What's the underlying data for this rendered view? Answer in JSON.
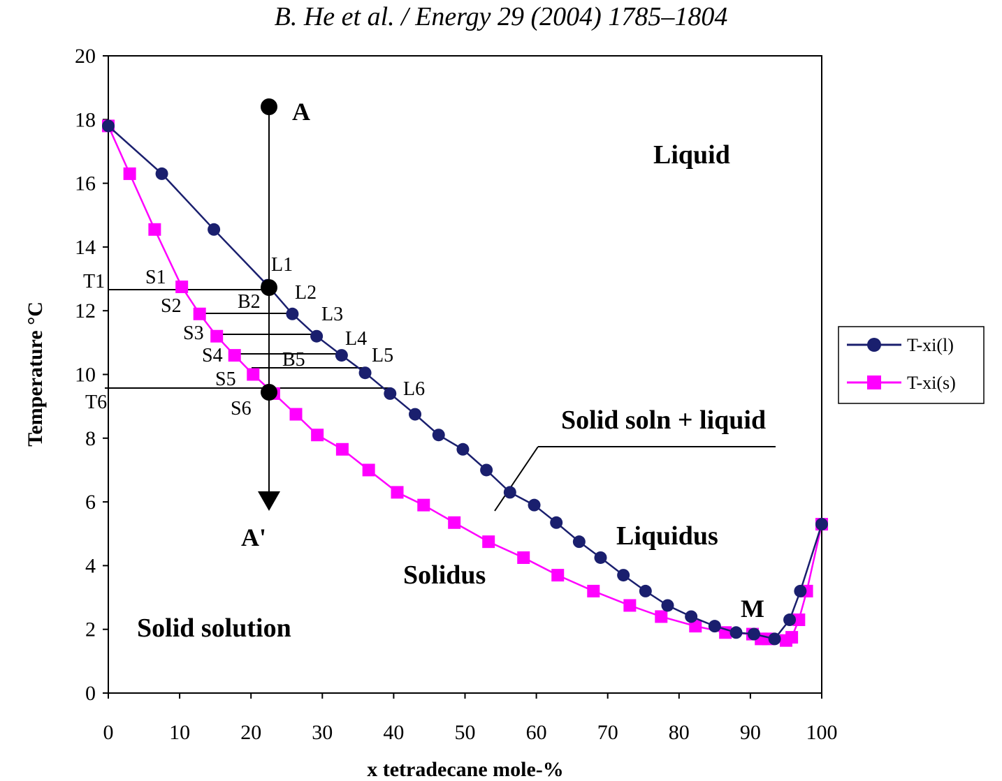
{
  "header": "B. He et al. / Energy 29 (2004) 1785–1804",
  "chart_data": {
    "type": "line",
    "title": "",
    "xlabel": "x tetradecane mole-%",
    "ylabel": "Temperature °C",
    "xlim": [
      0,
      100
    ],
    "ylim": [
      0,
      20
    ],
    "x_ticks": [
      "0",
      "10",
      "20",
      "30",
      "40",
      "50",
      "60",
      "70",
      "80",
      "90",
      "100"
    ],
    "y_ticks": [
      "0",
      "2",
      "4",
      "6",
      "8",
      "10",
      "12",
      "14",
      "16",
      "18",
      "20"
    ],
    "grid": false,
    "legend_position": "right",
    "series": [
      {
        "name": "T-xi(l)",
        "color": "#1a1f6e",
        "marker": "circle",
        "points": [
          [
            0,
            17.8
          ],
          [
            7.5,
            16.3
          ],
          [
            14.8,
            14.55
          ],
          [
            22.3,
            12.8
          ],
          [
            25.8,
            11.9
          ],
          [
            29.2,
            11.2
          ],
          [
            32.7,
            10.6
          ],
          [
            36.0,
            10.05
          ],
          [
            39.5,
            9.4
          ],
          [
            43.0,
            8.75
          ],
          [
            46.3,
            8.1
          ],
          [
            49.7,
            7.65
          ],
          [
            53.0,
            7.0
          ],
          [
            56.3,
            6.3
          ],
          [
            59.7,
            5.9
          ],
          [
            62.8,
            5.35
          ],
          [
            66.0,
            4.75
          ],
          [
            69.0,
            4.25
          ],
          [
            72.2,
            3.7
          ],
          [
            75.3,
            3.2
          ],
          [
            78.4,
            2.75
          ],
          [
            81.7,
            2.4
          ],
          [
            85.0,
            2.1
          ],
          [
            88.0,
            1.9
          ],
          [
            90.5,
            1.85
          ],
          [
            93.4,
            1.7
          ],
          [
            95.5,
            2.3
          ],
          [
            97.0,
            3.2
          ],
          [
            100,
            5.3
          ]
        ]
      },
      {
        "name": "T-xi(s)",
        "color": "#ff00ff",
        "marker": "square",
        "points": [
          [
            0,
            17.8
          ],
          [
            3.0,
            16.3
          ],
          [
            6.5,
            14.55
          ],
          [
            10.3,
            12.75
          ],
          [
            12.8,
            11.9
          ],
          [
            15.2,
            11.2
          ],
          [
            17.7,
            10.6
          ],
          [
            20.3,
            10.0
          ],
          [
            23.2,
            9.4
          ],
          [
            26.3,
            8.75
          ],
          [
            29.3,
            8.1
          ],
          [
            32.8,
            7.65
          ],
          [
            36.5,
            7.0
          ],
          [
            40.5,
            6.3
          ],
          [
            44.2,
            5.9
          ],
          [
            48.5,
            5.35
          ],
          [
            53.3,
            4.75
          ],
          [
            58.2,
            4.25
          ],
          [
            63.0,
            3.7
          ],
          [
            68.0,
            3.2
          ],
          [
            73.1,
            2.75
          ],
          [
            77.5,
            2.4
          ],
          [
            82.3,
            2.1
          ],
          [
            86.5,
            1.9
          ],
          [
            90.3,
            1.85
          ],
          [
            91.5,
            1.7
          ],
          [
            92.5,
            1.7
          ],
          [
            95.0,
            1.65
          ],
          [
            95.8,
            1.75
          ],
          [
            96.8,
            2.3
          ],
          [
            97.9,
            3.2
          ],
          [
            100,
            5.3
          ]
        ]
      }
    ],
    "annotations": {
      "points": [
        "A",
        "A'",
        "M"
      ],
      "point_labels_S": [
        "S1",
        "S2",
        "S3",
        "S4",
        "S5",
        "S6"
      ],
      "point_labels_L": [
        "L1",
        "L2",
        "L3",
        "L4",
        "L5",
        "L6"
      ],
      "point_labels_T": [
        "T1",
        "T6"
      ],
      "point_labels_B": [
        "B2",
        "B5"
      ],
      "regions": {
        "liquid": "Liquid",
        "two_phase": "Solid soln + liquid",
        "liquidus": "Liquidus",
        "solidus": "Solidus",
        "solid_solution": "Solid solution"
      }
    }
  }
}
